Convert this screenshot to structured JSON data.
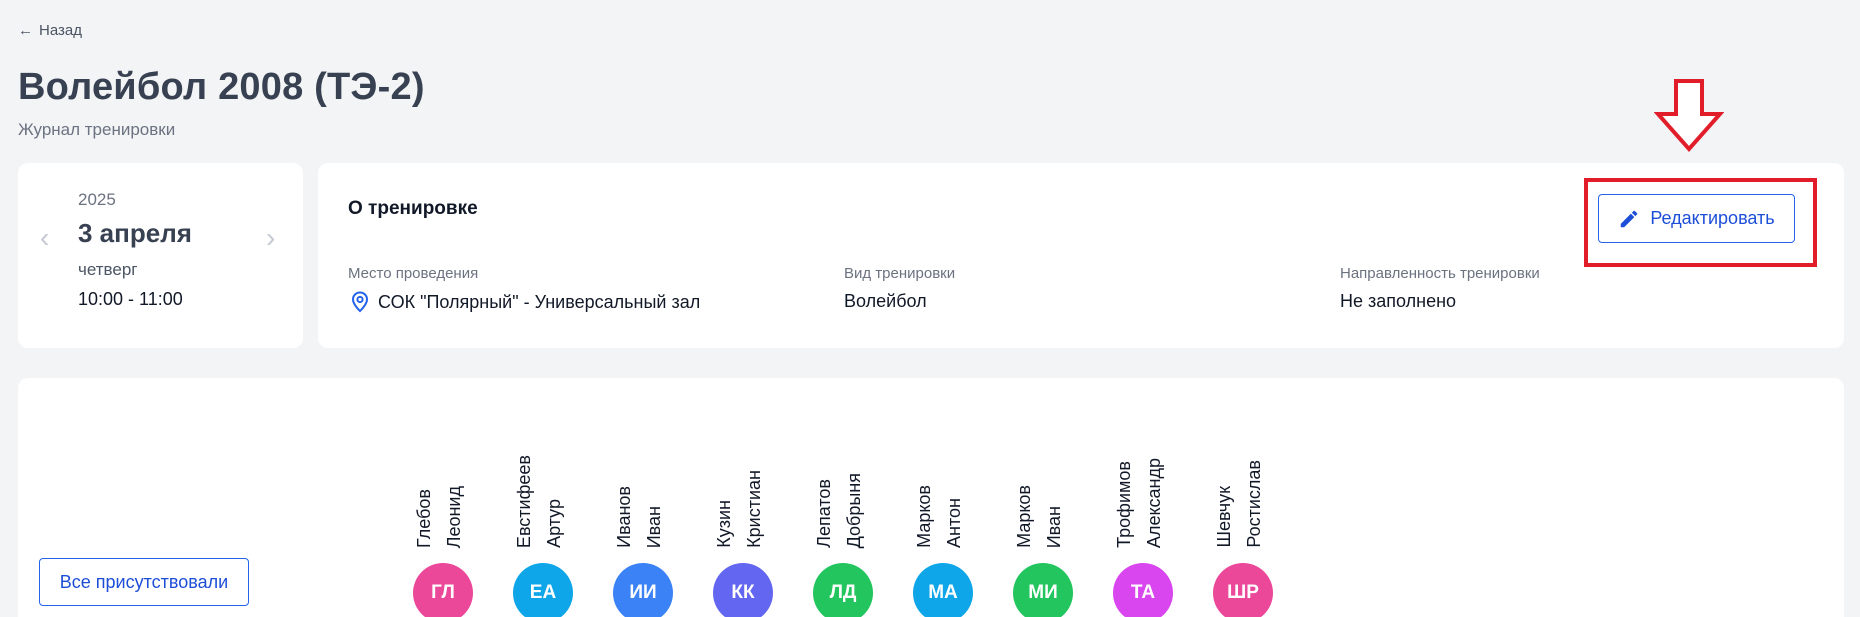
{
  "nav": {
    "back_label": "Назад"
  },
  "header": {
    "title": "Волейбол 2008 (ТЭ-2)",
    "subtitle": "Журнал тренировки"
  },
  "date_card": {
    "year": "2025",
    "day": "3 апреля",
    "weekday": "четверг",
    "time": "10:00 - 11:00"
  },
  "training": {
    "title": "О тренировке",
    "edit_label": "Редактировать",
    "fields": [
      {
        "label": "Место проведения",
        "value": "СОК \"Полярный\" - Универсальный зал",
        "icon": "location-pin-icon"
      },
      {
        "label": "Вид тренировки",
        "value": "Волейбол"
      },
      {
        "label": "Направленность тренировки",
        "value": "Не заполнено"
      }
    ]
  },
  "attendance": {
    "all_present_label": "Все присутствовали",
    "athletes": [
      {
        "surname": "Глебов",
        "given": "Леонид",
        "initials": "ГЛ",
        "color": "#ec4899"
      },
      {
        "surname": "Евстифеев",
        "given": "Артур",
        "initials": "ЕА",
        "color": "#0ea5e9"
      },
      {
        "surname": "Иванов",
        "given": "Иван",
        "initials": "ИИ",
        "color": "#3b82f6"
      },
      {
        "surname": "Кузин",
        "given": "Кристиан",
        "initials": "КК",
        "color": "#6366f1"
      },
      {
        "surname": "Лепатов",
        "given": "Добрыня",
        "initials": "ЛД",
        "color": "#22c55e"
      },
      {
        "surname": "Марков",
        "given": "Антон",
        "initials": "МА",
        "color": "#0ea5e9"
      },
      {
        "surname": "Марков",
        "given": "Иван",
        "initials": "МИ",
        "color": "#22c55e"
      },
      {
        "surname": "Трофимов",
        "given": "Александр",
        "initials": "ТА",
        "color": "#d946ef"
      },
      {
        "surname": "Шевчук",
        "given": "Ростислав",
        "initials": "ШР",
        "color": "#ec4899"
      }
    ]
  },
  "colors": {
    "accent": "#2563eb",
    "highlight": "#e11d2a"
  }
}
